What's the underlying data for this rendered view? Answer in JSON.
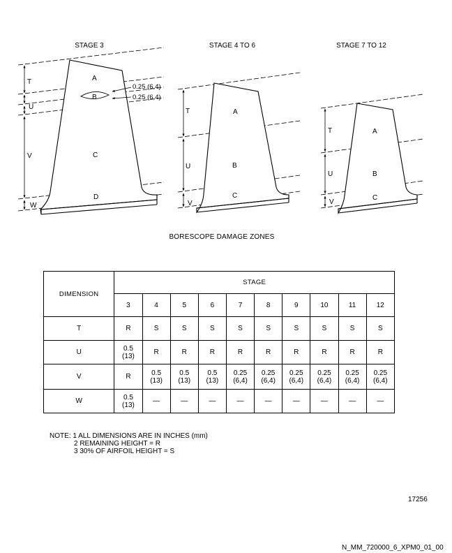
{
  "figure": {
    "stage_labels": {
      "stage3": "STAGE 3",
      "stage4_6": "STAGE 4 TO 6",
      "stage7_12": "STAGE 7 TO 12"
    },
    "zones": {
      "a": "A",
      "b": "B",
      "c": "C",
      "d": "D"
    },
    "dims": {
      "t": "T",
      "u": "U",
      "v": "V",
      "w": "W"
    },
    "callouts": {
      "first": "0.25 (6,4)",
      "second": "0.25 (6,4)"
    },
    "caption": "BORESCOPE DAMAGE ZONES"
  },
  "table": {
    "dimension_header": "DIMENSION",
    "stage_header": "STAGE",
    "stages": [
      "3",
      "4",
      "5",
      "6",
      "7",
      "8",
      "9",
      "10",
      "11",
      "12"
    ],
    "rows": [
      {
        "dim": "T",
        "cells": [
          [
            "R"
          ],
          [
            "S"
          ],
          [
            "S"
          ],
          [
            "S"
          ],
          [
            "S"
          ],
          [
            "S"
          ],
          [
            "S"
          ],
          [
            "S"
          ],
          [
            "S"
          ],
          [
            "S"
          ]
        ]
      },
      {
        "dim": "U",
        "cells": [
          [
            "0.5",
            "(13)"
          ],
          [
            "R"
          ],
          [
            "R"
          ],
          [
            "R"
          ],
          [
            "R"
          ],
          [
            "R"
          ],
          [
            "R"
          ],
          [
            "R"
          ],
          [
            "R"
          ],
          [
            "R"
          ]
        ]
      },
      {
        "dim": "V",
        "cells": [
          [
            "R"
          ],
          [
            "0.5",
            "(13)"
          ],
          [
            "0.5",
            "(13)"
          ],
          [
            "0.5",
            "(13)"
          ],
          [
            "0.25",
            "(6,4)"
          ],
          [
            "0.25",
            "(6,4)"
          ],
          [
            "0.25",
            "(6,4)"
          ],
          [
            "0.25",
            "(6,4)"
          ],
          [
            "0.25",
            "(6,4)"
          ],
          [
            "0.25",
            "(6,4)"
          ]
        ]
      },
      {
        "dim": "W",
        "cells": [
          [
            "0.5",
            "(13)"
          ],
          [
            "—"
          ],
          [
            "—"
          ],
          [
            "—"
          ],
          [
            "—"
          ],
          [
            "—"
          ],
          [
            "—"
          ],
          [
            "—"
          ],
          [
            "—"
          ],
          [
            "—"
          ]
        ]
      }
    ]
  },
  "notes": [
    "NOTE: 1 ALL DIMENSIONS ARE IN INCHES (mm)",
    "2 REMAINING HEIGHT = R",
    "3 30% OF AIRFOIL HEIGHT = S"
  ],
  "figure_number": "17256",
  "document_id": "N_MM_720000_6_XPM0_01_00"
}
